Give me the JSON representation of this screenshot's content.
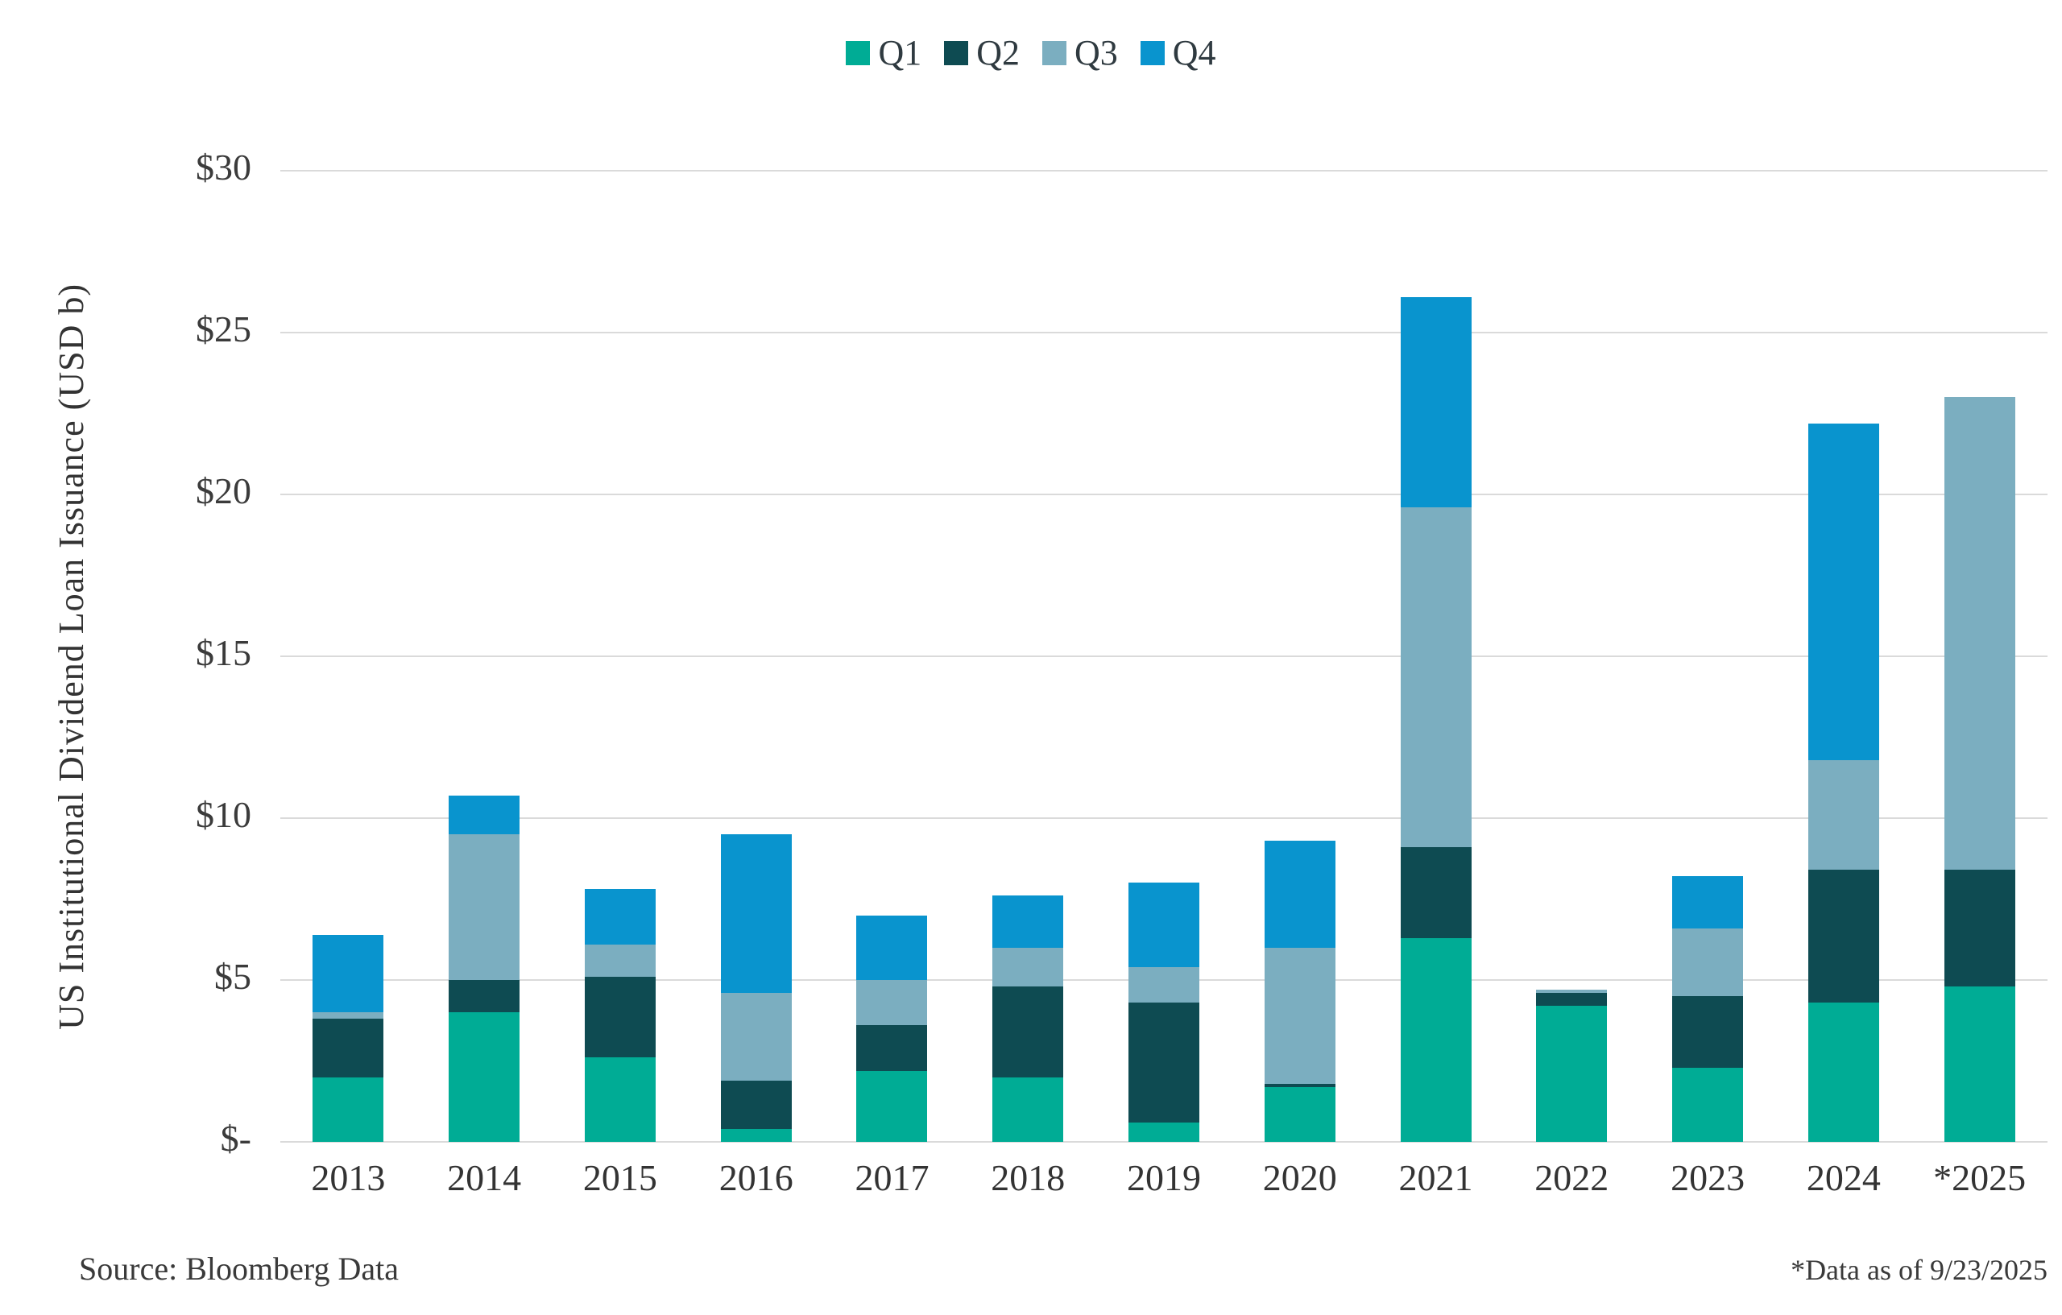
{
  "legend": {
    "items": [
      {
        "label": "Q1",
        "color": "#00AC95"
      },
      {
        "label": "Q2",
        "color": "#0E4B52"
      },
      {
        "label": "Q3",
        "color": "#7BAEC0"
      },
      {
        "label": "Q4",
        "color": "#0994CE"
      }
    ]
  },
  "y_axis": {
    "title": "US Institutional Dividend Loan Issuance (USD b)",
    "tick_labels": [
      "$-",
      "$5",
      "$10",
      "$15",
      "$20",
      "$25",
      "$30"
    ],
    "tick_values": [
      0,
      5,
      10,
      15,
      20,
      25,
      30
    ]
  },
  "footer": {
    "source": "Source: Bloomberg Data",
    "footnote": "*Data as of 9/23/2025"
  },
  "chart_data": {
    "type": "bar",
    "stacked": true,
    "categories": [
      "2013",
      "2014",
      "2015",
      "2016",
      "2017",
      "2018",
      "2019",
      "2020",
      "2021",
      "2022",
      "2023",
      "2024",
      "*2025"
    ],
    "series": [
      {
        "name": "Q1",
        "color": "#00AC95",
        "values": [
          2.0,
          4.0,
          2.6,
          0.4,
          2.2,
          2.0,
          0.6,
          1.7,
          6.3,
          4.2,
          2.3,
          4.3,
          4.8
        ]
      },
      {
        "name": "Q2",
        "color": "#0E4B52",
        "values": [
          1.8,
          1.0,
          2.5,
          1.5,
          1.4,
          2.8,
          3.7,
          0.1,
          2.8,
          0.4,
          2.2,
          4.1,
          3.6
        ]
      },
      {
        "name": "Q3",
        "color": "#7BAEC0",
        "values": [
          0.2,
          4.5,
          1.0,
          2.7,
          1.4,
          1.2,
          1.1,
          4.2,
          10.5,
          0.1,
          2.1,
          3.4,
          14.6
        ]
      },
      {
        "name": "Q4",
        "color": "#0994CE",
        "values": [
          2.4,
          1.2,
          1.7,
          4.9,
          2.0,
          1.6,
          2.6,
          3.3,
          6.5,
          0.0,
          1.6,
          10.4,
          0.0
        ]
      }
    ],
    "totals": [
      6.4,
      10.7,
      7.8,
      9.5,
      7.0,
      7.6,
      8.0,
      9.3,
      26.1,
      4.7,
      8.2,
      22.2,
      23.0
    ],
    "ylabel": "US Institutional Dividend Loan Issuance (USD b)",
    "ylim": [
      0,
      30
    ],
    "grid": "horizontal",
    "legend_position": "top",
    "gridline_color": "#DADADA"
  }
}
